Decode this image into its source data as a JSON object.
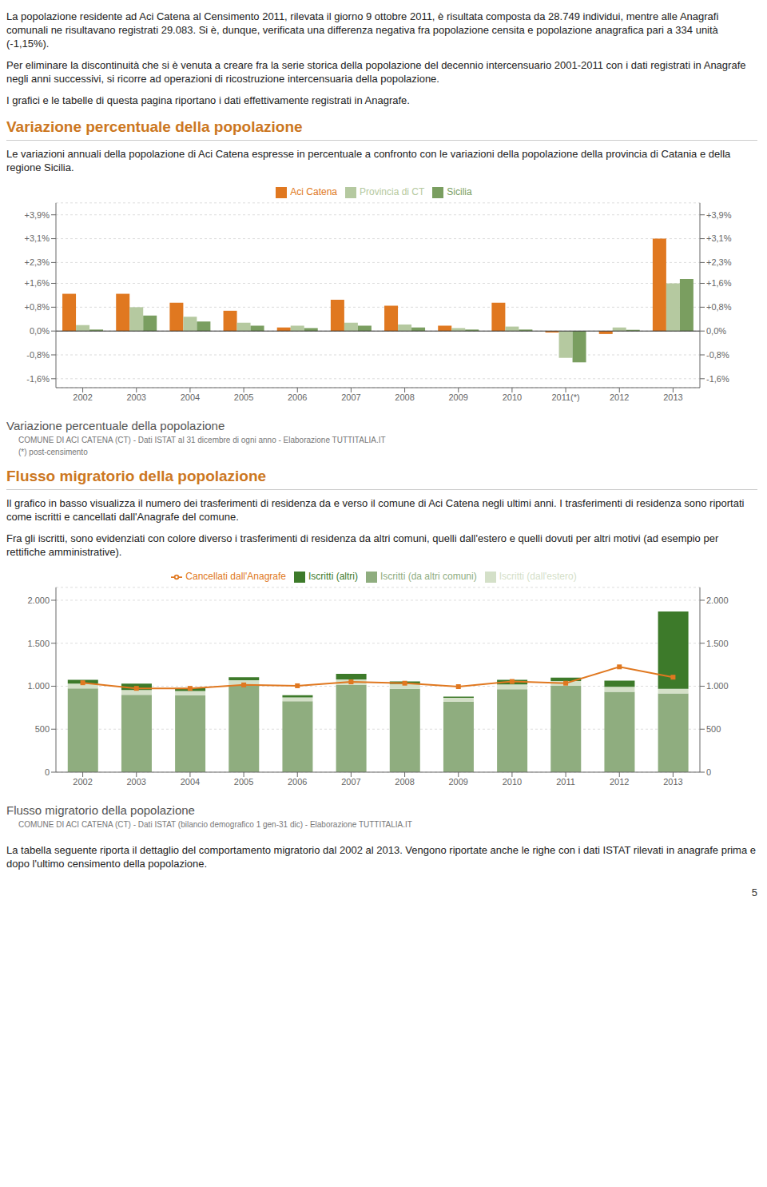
{
  "chart_data": [
    {
      "type": "bar",
      "title": "Variazione percentuale della popolazione",
      "subtitle": "COMUNE DI ACI CATENA (CT) - Dati ISTAT al 31 dicembre di ogni anno - Elaborazione TUTTITALIA.IT",
      "annotations": [
        "La popolazione residente ad Aci Catena al Censimento 2011, rilevata il giorno 9 ottobre 2011, è risultata composta da 28.749 individui, mentre alle Anagrafi comunali ne risultavano registrati 29.083. Si è, dunque, verificata una differenza negativa fra popolazione censita e popolazione anagrafica pari a 334 unità (-1,15%).",
        "Per eliminare la discontinuità che si è venuta a creare fra la serie storica della popolazione del decennio intercensuario 2001-2011 con i dati registrati in Anagrafe negli anni successivi, si ricorre ad operazioni di ricostruzione intercensuaria della popolazione.",
        "I grafici e le tabelle di questa pagina riportano i dati effettivamente registrati in Anagrafe.",
        "Variazione percentuale della popolazione",
        "Le variazioni annuali della popolazione di Aci Catena espresse in percentuale a confronto con le variazioni della popolazione della provincia di Catania e della regione Sicilia.",
        "(*) post-censimento"
      ],
      "categories": [
        "2002",
        "2003",
        "2004",
        "2005",
        "2006",
        "2007",
        "2008",
        "2009",
        "2010",
        "2011(*)",
        "2012",
        "2013"
      ],
      "series": [
        {
          "name": "Aci Catena",
          "color": "#e07820",
          "values": [
            1.25,
            1.25,
            0.95,
            0.68,
            0.12,
            1.05,
            0.85,
            0.18,
            0.95,
            -0.05,
            -0.1,
            3.1
          ]
        },
        {
          "name": "Provincia di CT",
          "color": "#b5c9a0",
          "values": [
            0.2,
            0.8,
            0.48,
            0.28,
            0.18,
            0.28,
            0.22,
            0.1,
            0.15,
            -0.9,
            0.12,
            1.6
          ]
        },
        {
          "name": "Sicilia",
          "color": "#7a9e60",
          "values": [
            0.05,
            0.52,
            0.32,
            0.18,
            0.1,
            0.18,
            0.12,
            0.05,
            0.05,
            -1.05,
            0.04,
            1.75
          ]
        }
      ],
      "ylim": [
        -1.9,
        4.3
      ],
      "yticks": [
        {
          "value": -1.6,
          "label": "-1,6%"
        },
        {
          "value": -0.8,
          "label": "-0,8%"
        },
        {
          "value": 0.0,
          "label": "0,0%"
        },
        {
          "value": 0.8,
          "label": "+0,8%"
        },
        {
          "value": 1.6,
          "label": "+1,6%"
        },
        {
          "value": 2.3,
          "label": "+2,3%"
        },
        {
          "value": 3.1,
          "label": "+3,1%"
        },
        {
          "value": 3.9,
          "label": "+3,9%"
        }
      ],
      "grid": true,
      "legend": "top"
    },
    {
      "type": "bar",
      "title": "Flusso migratorio della popolazione",
      "subtitle": "COMUNE DI ACI CATENA (CT) - Dati ISTAT (bilancio demografico 1 gen-31 dic) - Elaborazione TUTTITALIA.IT",
      "annotations": [
        "Flusso migratorio della popolazione",
        "Il grafico in basso visualizza il numero dei trasferimenti di residenza da e verso il comune di Aci Catena negli ultimi anni. I trasferimenti di residenza sono riportati come iscritti e cancellati dall'Anagrafe del comune.",
        "Fra gli iscritti, sono evidenziati con colore diverso i trasferimenti di residenza da altri comuni, quelli dall'estero e quelli dovuti per altri motivi (ad esempio per rettifiche amministrative).",
        "La tabella seguente riporta il dettaglio del comportamento migratorio dal 2002 al 2013. Vengono riportate anche le righe con i dati ISTAT rilevati in anagrafe prima e dopo l'ultimo censimento della popolazione.",
        "5"
      ],
      "categories": [
        "2002",
        "2003",
        "2004",
        "2005",
        "2006",
        "2007",
        "2008",
        "2009",
        "2010",
        "2011",
        "2012",
        "2013"
      ],
      "stacked": true,
      "series": [
        {
          "name": "Iscritti (da altri comuni)",
          "type": "bar",
          "color": "#8fad7f",
          "values": [
            975,
            900,
            895,
            1015,
            825,
            1015,
            970,
            820,
            965,
            1005,
            935,
            915
          ]
        },
        {
          "name": "Iscritti (dall'estero)",
          "type": "bar",
          "color": "#d4e0c8",
          "values": [
            55,
            55,
            50,
            55,
            45,
            65,
            55,
            45,
            55,
            55,
            58,
            55
          ]
        },
        {
          "name": "Iscritti (altri)",
          "type": "bar",
          "color": "#3d7a2a",
          "values": [
            45,
            75,
            35,
            35,
            25,
            65,
            30,
            15,
            55,
            40,
            72,
            900
          ]
        },
        {
          "name": "Cancellati dall'Anagrafe",
          "type": "line",
          "marker": "square",
          "color": "#e07820",
          "values": [
            1040,
            975,
            975,
            1015,
            1005,
            1050,
            1035,
            995,
            1055,
            1035,
            1225,
            1105
          ]
        }
      ],
      "ylim": [
        0,
        2150
      ],
      "yticks": [
        0,
        500,
        {
          "value": 1000,
          "label": "1.000"
        },
        {
          "value": 1500,
          "label": "1.500"
        },
        {
          "value": 2000,
          "label": "2.000"
        }
      ],
      "grid": true,
      "legend": "top"
    }
  ]
}
